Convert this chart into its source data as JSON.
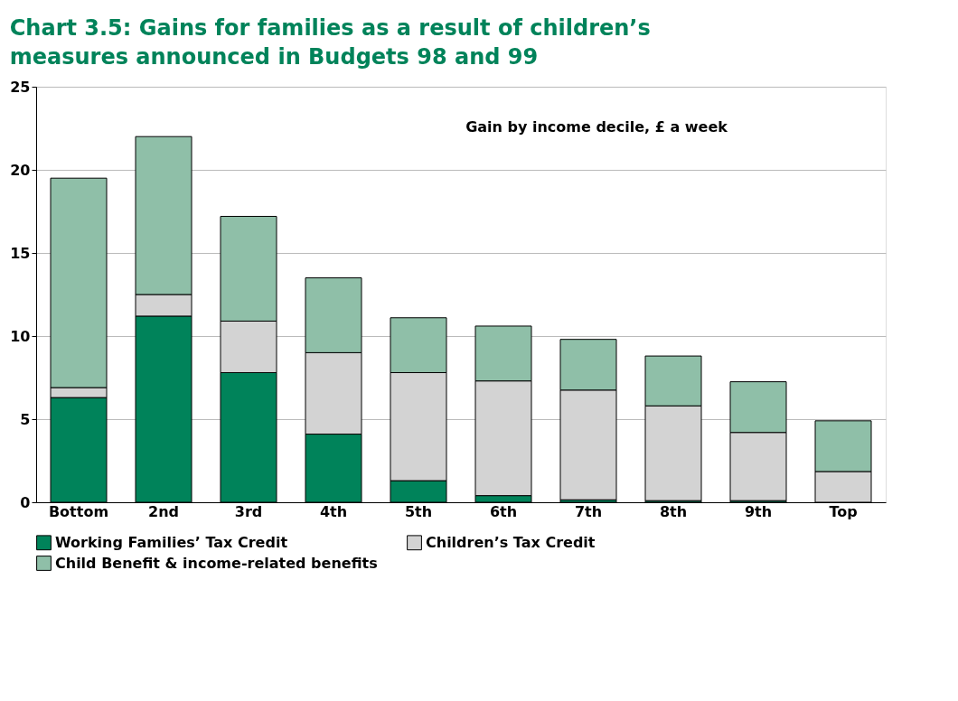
{
  "chart_data": {
    "type": "bar",
    "stacked": true,
    "title": "Chart 3.5: Gains for families as a result of children’s measures announced in Budgets 98 and 99",
    "annotations": [
      "Gain by income decile, £ a week"
    ],
    "categories": [
      "Bottom",
      "2nd",
      "3rd",
      "4th",
      "5th",
      "6th",
      "7th",
      "8th",
      "9th",
      "Top"
    ],
    "series": [
      {
        "name": "Working Families’ Tax Credit",
        "color": "#00835a",
        "values": [
          6.3,
          11.2,
          7.8,
          4.1,
          1.3,
          0.4,
          0.15,
          0.1,
          0.1,
          0
        ]
      },
      {
        "name": "Children’s Tax Credit",
        "color": "#d3d3d3",
        "values": [
          0.6,
          1.3,
          3.1,
          4.9,
          6.5,
          6.9,
          6.6,
          5.7,
          4.1,
          1.85
        ]
      },
      {
        "name": "Child Benefit & income-related benefits",
        "color": "#8fbfa8",
        "values": [
          12.6,
          9.5,
          6.3,
          4.5,
          3.3,
          3.3,
          3.05,
          3.0,
          3.05,
          3.05
        ]
      }
    ],
    "ylim": [
      0,
      25
    ],
    "yticks": [
      0,
      5,
      10,
      15,
      20,
      25
    ],
    "grid": "y",
    "legend": "bottom"
  }
}
